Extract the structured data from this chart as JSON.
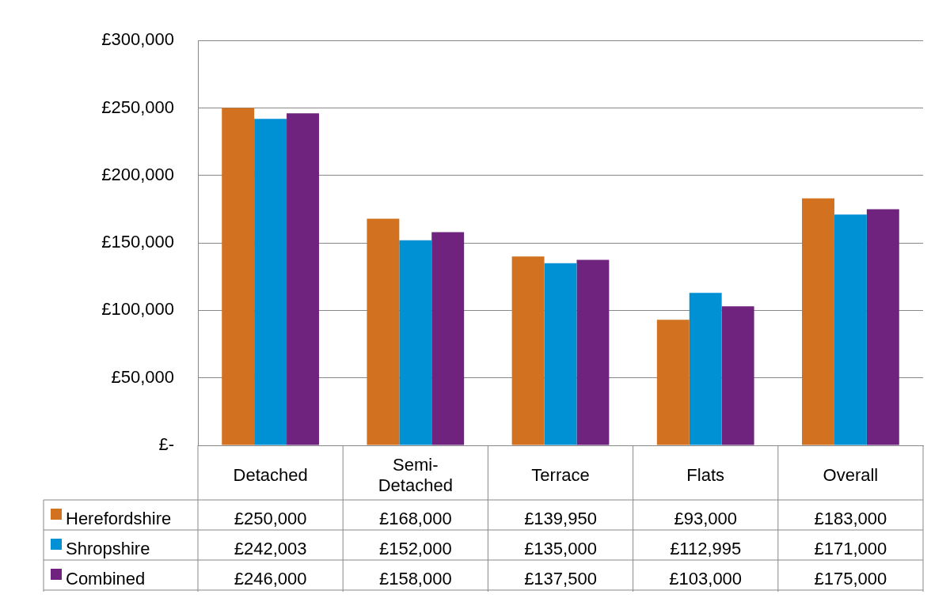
{
  "chart_data": {
    "type": "bar",
    "categories": [
      "Detached",
      "Semi-Detached",
      "Terrace",
      "Flats",
      "Overall"
    ],
    "series": [
      {
        "name": "Herefordshire",
        "color": "#d2711f",
        "values": [
          250000,
          168000,
          139950,
          93000,
          183000
        ],
        "value_labels": [
          "£250,000",
          "£168,000",
          "£139,950",
          "£93,000",
          "£183,000"
        ]
      },
      {
        "name": "Shropshire",
        "color": "#0091d5",
        "values": [
          242003,
          152000,
          135000,
          112995,
          171000
        ],
        "value_labels": [
          "£242,003",
          "£152,000",
          "£135,000",
          "£112,995",
          "£171,000"
        ]
      },
      {
        "name": "Combined",
        "color": "#6f237e",
        "values": [
          246000,
          158000,
          137500,
          103000,
          175000
        ],
        "value_labels": [
          "£246,000",
          "£158,000",
          "£137,500",
          "£103,000",
          "£175,000"
        ]
      }
    ],
    "ylim": [
      0,
      300000
    ],
    "yticks": [
      {
        "value": 0,
        "label": "£-"
      },
      {
        "value": 50000,
        "label": "£50,000"
      },
      {
        "value": 100000,
        "label": "£100,000"
      },
      {
        "value": 150000,
        "label": "£150,000"
      },
      {
        "value": 200000,
        "label": "£200,000"
      },
      {
        "value": 250000,
        "label": "£250,000"
      },
      {
        "value": 300000,
        "label": "£300,000"
      }
    ],
    "grid": "y",
    "legend": "bottom left"
  }
}
